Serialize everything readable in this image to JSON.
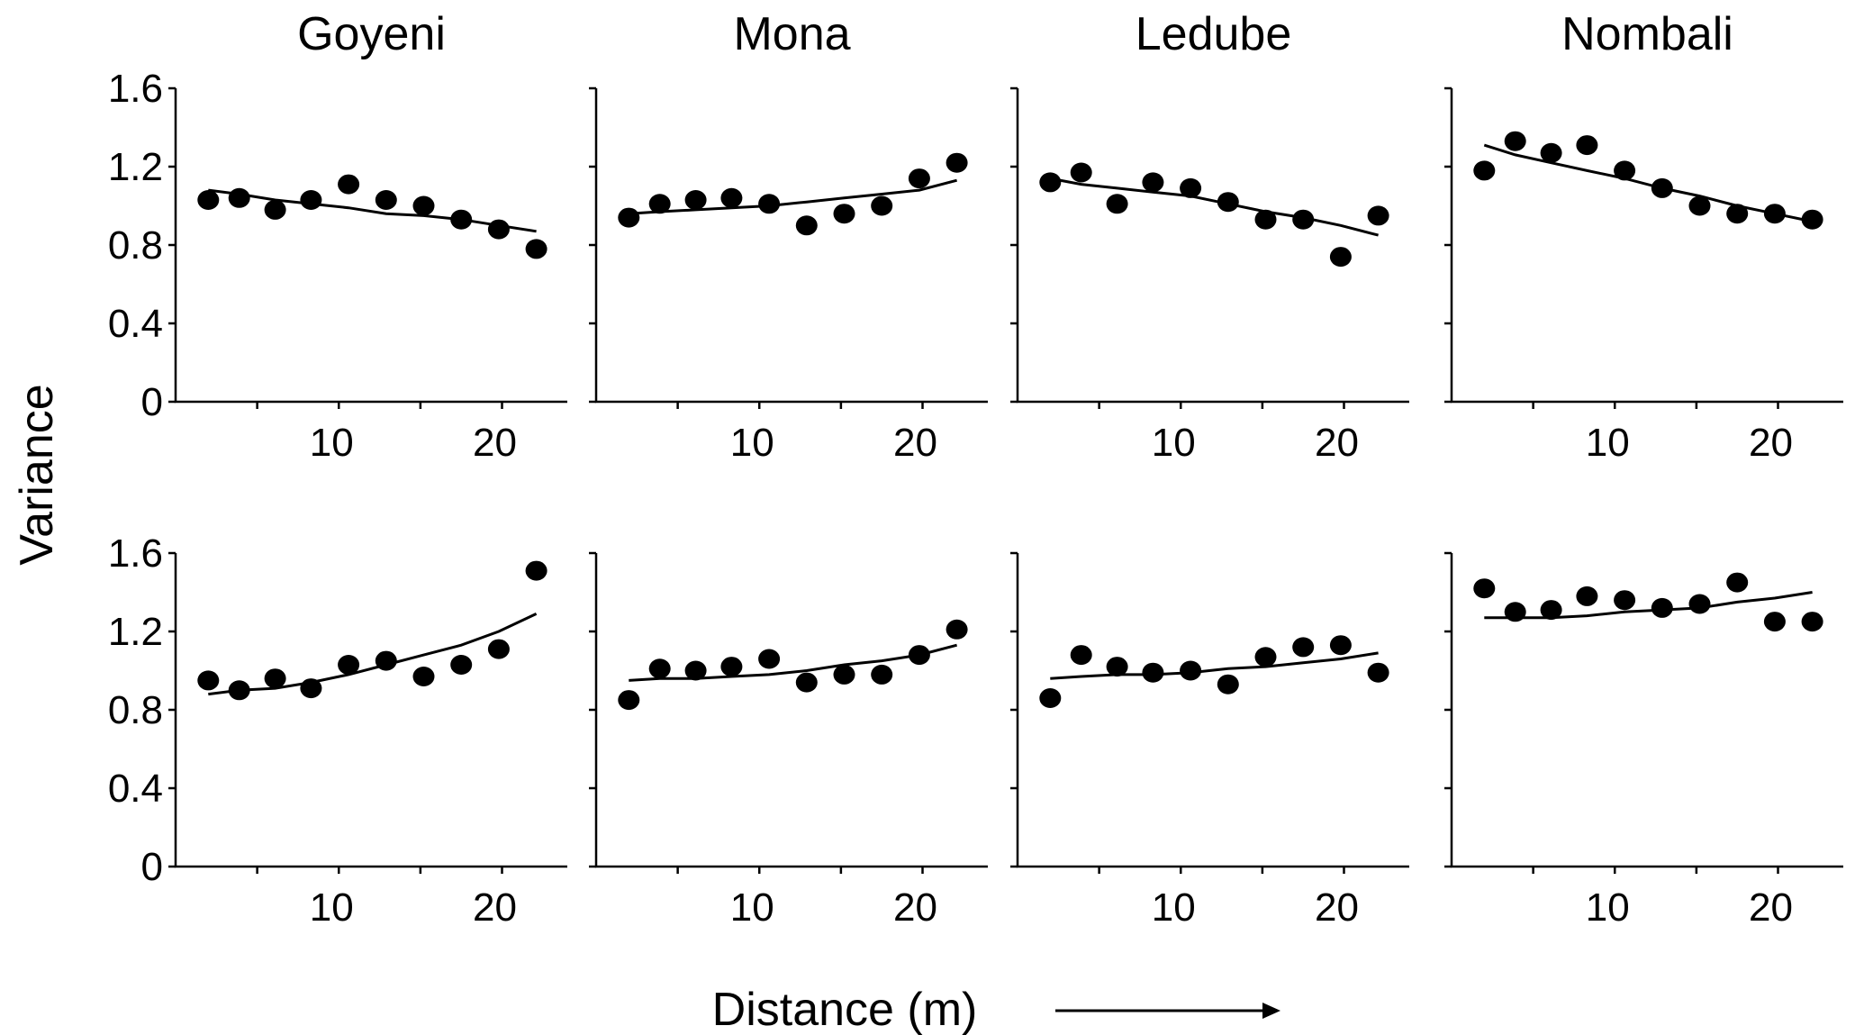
{
  "chart_data": {
    "type": "scatter",
    "xlabel": "Distance (m)",
    "ylabel": "Variance",
    "xlim": [
      0,
      24
    ],
    "ylim": [
      0,
      1.6
    ],
    "yticks": [
      "0",
      "0.4",
      "0.8",
      "1.2",
      "1.6"
    ],
    "xticks": [
      "10",
      "20"
    ],
    "x": [
      2.0,
      3.9,
      6.1,
      8.3,
      10.6,
      12.9,
      15.2,
      17.5,
      19.8,
      22.1
    ],
    "panels": [
      {
        "name": "Goyeni",
        "row": 0,
        "col": 0,
        "show_title": true,
        "points": [
          1.03,
          1.04,
          0.98,
          1.03,
          1.11,
          1.03,
          1.0,
          0.93,
          0.88,
          0.78
        ],
        "fit": [
          1.08,
          1.06,
          1.03,
          1.01,
          0.99,
          0.96,
          0.95,
          0.93,
          0.9,
          0.87
        ]
      },
      {
        "name": "Mona",
        "row": 0,
        "col": 1,
        "show_title": true,
        "points": [
          0.94,
          1.01,
          1.03,
          1.04,
          1.01,
          0.9,
          0.96,
          1.0,
          1.14,
          1.22
        ],
        "fit": [
          0.96,
          0.97,
          0.98,
          0.99,
          1.0,
          1.02,
          1.04,
          1.06,
          1.08,
          1.13
        ]
      },
      {
        "name": "Ledube",
        "row": 0,
        "col": 2,
        "show_title": true,
        "points": [
          1.12,
          1.17,
          1.01,
          1.12,
          1.09,
          1.02,
          0.93,
          0.93,
          0.74,
          0.95
        ],
        "fit": [
          1.14,
          1.11,
          1.09,
          1.07,
          1.05,
          1.01,
          0.97,
          0.94,
          0.9,
          0.85
        ]
      },
      {
        "name": "Nombali",
        "row": 0,
        "col": 3,
        "show_title": true,
        "points": [
          1.18,
          1.33,
          1.27,
          1.31,
          1.18,
          1.09,
          1.0,
          0.96,
          0.96,
          0.93
        ],
        "fit": [
          1.31,
          1.26,
          1.22,
          1.18,
          1.14,
          1.09,
          1.05,
          1.0,
          0.96,
          0.92
        ]
      },
      {
        "name": "Goyeni",
        "row": 1,
        "col": 0,
        "show_title": false,
        "points": [
          0.95,
          0.9,
          0.96,
          0.91,
          1.03,
          1.05,
          0.97,
          1.03,
          1.11,
          1.51
        ],
        "fit": [
          0.88,
          0.9,
          0.91,
          0.94,
          0.98,
          1.03,
          1.08,
          1.13,
          1.2,
          1.29
        ]
      },
      {
        "name": "Mona",
        "row": 1,
        "col": 1,
        "show_title": false,
        "points": [
          0.85,
          1.01,
          1.0,
          1.02,
          1.06,
          0.94,
          0.98,
          0.98,
          1.08,
          1.21
        ],
        "fit": [
          0.95,
          0.96,
          0.96,
          0.97,
          0.98,
          1.0,
          1.03,
          1.05,
          1.08,
          1.13
        ]
      },
      {
        "name": "Ledube",
        "row": 1,
        "col": 2,
        "show_title": false,
        "points": [
          0.86,
          1.08,
          1.02,
          0.99,
          1.0,
          0.93,
          1.07,
          1.12,
          1.13,
          0.99
        ],
        "fit": [
          0.96,
          0.97,
          0.98,
          0.98,
          0.99,
          1.01,
          1.02,
          1.04,
          1.06,
          1.09
        ]
      },
      {
        "name": "Nombali",
        "row": 1,
        "col": 3,
        "show_title": false,
        "points": [
          1.42,
          1.3,
          1.31,
          1.38,
          1.36,
          1.32,
          1.34,
          1.45,
          1.25,
          1.25
        ],
        "fit": [
          1.27,
          1.27,
          1.27,
          1.28,
          1.3,
          1.31,
          1.32,
          1.35,
          1.37,
          1.4
        ]
      }
    ]
  }
}
